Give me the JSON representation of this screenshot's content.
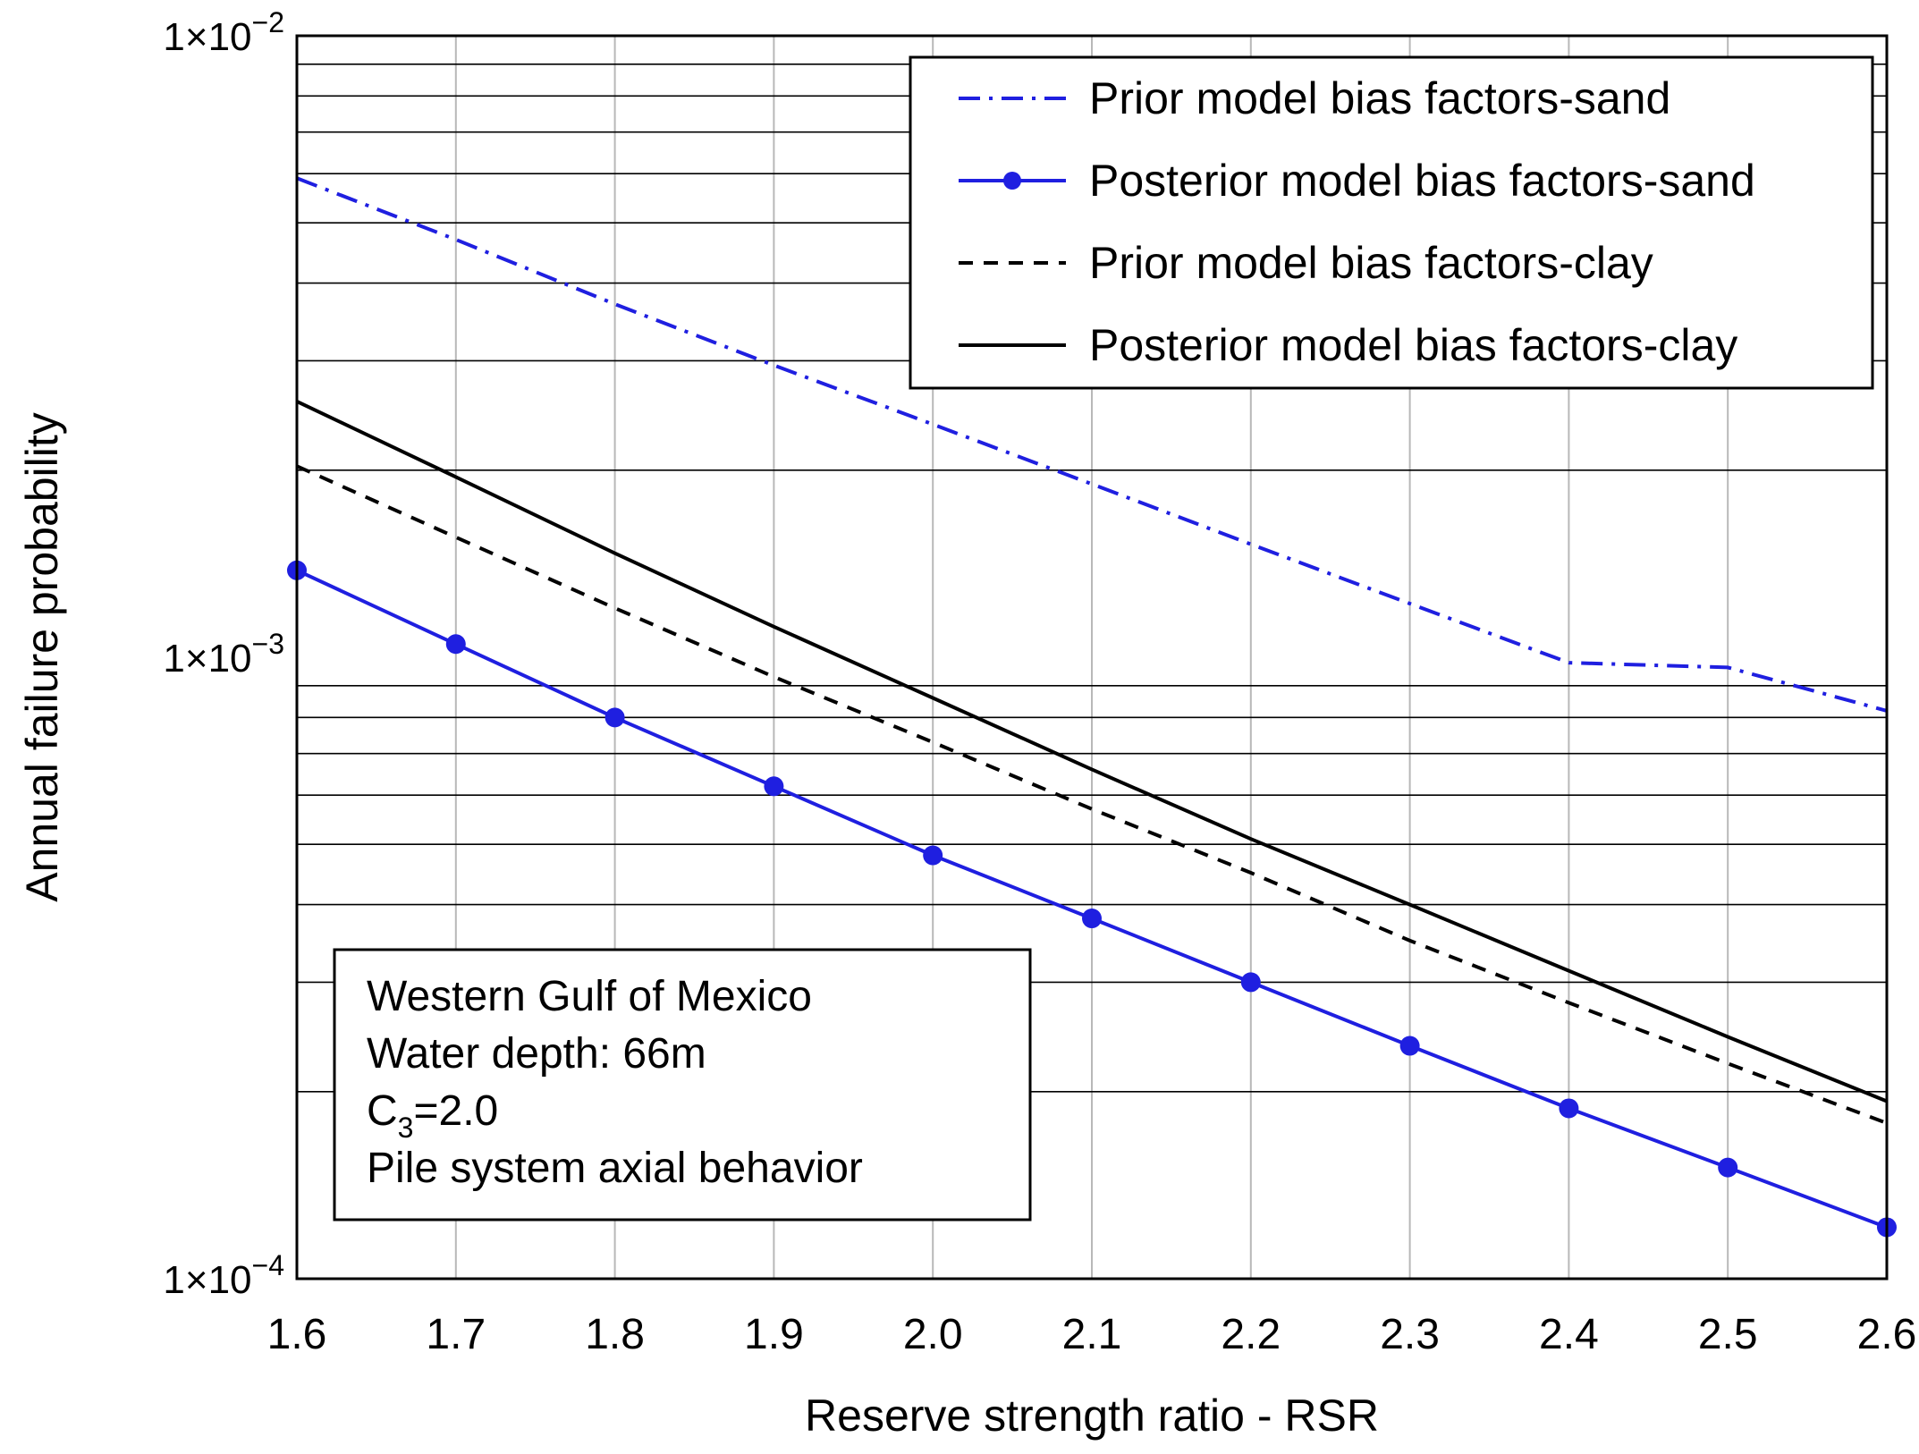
{
  "chart_data": {
    "type": "line",
    "title": "",
    "xlabel": "Reserve strength ratio - RSR",
    "ylabel": "Annual failure probability",
    "x": [
      1.6,
      1.7,
      1.8,
      1.9,
      2.0,
      2.1,
      2.2,
      2.3,
      2.4,
      2.5,
      2.6
    ],
    "x_tick_labels": [
      "1.6",
      "1.7",
      "1.8",
      "1.9",
      "2.0",
      "2.1",
      "2.2",
      "2.3",
      "2.4",
      "2.5",
      "2.6"
    ],
    "xlim": [
      1.6,
      2.6
    ],
    "yscale": "log",
    "ylim": [
      0.0001,
      0.01
    ],
    "y_tick_labels": [
      {
        "value": 0.01,
        "mantissa": "1×10",
        "exponent": "−2"
      },
      {
        "value": 0.001,
        "mantissa": "1×10",
        "exponent": "−3"
      },
      {
        "value": 0.0001,
        "mantissa": "1×10",
        "exponent": "−4"
      }
    ],
    "grid": true,
    "series": [
      {
        "name": "Prior model bias factors-sand",
        "color": "#1f1fe0",
        "line_style": "dash-dot",
        "markers": false,
        "values": [
          0.0059,
          0.0047,
          0.0037,
          0.00295,
          0.00237,
          0.0019,
          0.00152,
          0.00122,
          0.00098,
          0.000963,
          0.00082
        ]
      },
      {
        "name": "Posterior model bias factors-sand",
        "color": "#1f1fe0",
        "line_style": "solid",
        "markers": true,
        "values": [
          0.00138,
          0.00105,
          0.0008,
          0.00062,
          0.00048,
          0.00038,
          0.0003,
          0.000237,
          0.000188,
          0.000151,
          0.000121
        ]
      },
      {
        "name": "Prior model bias factors-clay",
        "color": "#000000",
        "line_style": "dashed",
        "markers": false,
        "values": [
          0.00203,
          0.00156,
          0.0012,
          0.00093,
          0.00073,
          0.00057,
          0.00045,
          0.00035,
          0.000278,
          0.000222,
          0.000178
        ]
      },
      {
        "name": "Posterior model bias factors-clay",
        "color": "#000000",
        "line_style": "solid",
        "markers": false,
        "values": [
          0.00258,
          0.00195,
          0.00147,
          0.00112,
          0.00086,
          0.00066,
          0.00051,
          0.0004,
          0.000313,
          0.000245,
          0.000193
        ]
      }
    ],
    "legend_position": "top-right",
    "annotation": {
      "lines": [
        "Western Gulf of Mexico",
        "Water depth:  66m",
        "Pile system axial behavior"
      ],
      "c3_symbol": "C",
      "c3_subscript": "3",
      "c3_value": "=2.0"
    }
  }
}
